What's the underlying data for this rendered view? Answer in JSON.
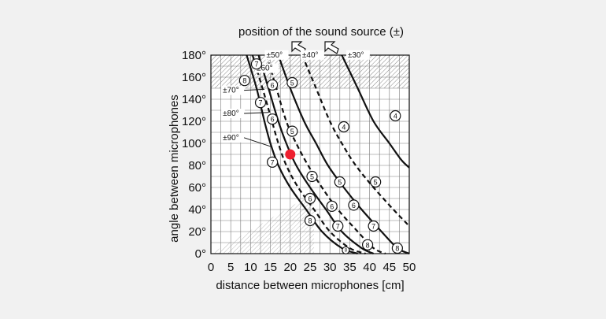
{
  "chart_data": {
    "type": "line",
    "title": "position of the sound source (±)",
    "xlabel": "distance between microphones [cm]",
    "ylabel": "angle between microphones",
    "xlim": [
      0,
      50
    ],
    "ylim": [
      0,
      180
    ],
    "x_ticks": [
      0,
      5,
      10,
      15,
      20,
      25,
      30,
      35,
      40,
      45,
      50
    ],
    "x_tick_labels": [
      "0",
      "5",
      "10",
      "15",
      "20",
      "25",
      "30",
      "35",
      "40",
      "45",
      "50"
    ],
    "y_ticks": [
      0,
      20,
      40,
      60,
      80,
      100,
      120,
      140,
      160,
      180
    ],
    "y_tick_labels": [
      "0°",
      "20°",
      "40°",
      "60°",
      "80°",
      "100°",
      "120°",
      "140°",
      "160°",
      "180°"
    ],
    "grid": true,
    "hatched_regions": [
      {
        "label": "",
        "x": [
          0,
          50
        ],
        "y": [
          150,
          180
        ]
      },
      {
        "label": "",
        "x": [
          0,
          26
        ],
        "y": [
          0,
          55
        ],
        "shape": "triangle"
      }
    ],
    "series": [
      {
        "name": "±90°",
        "style": "solid",
        "x": [
          9,
          11.5,
          13.5,
          15,
          17,
          20,
          24,
          28,
          33,
          37
        ],
        "y": [
          180,
          150,
          120,
          100,
          80,
          60,
          40,
          20,
          5,
          0
        ]
      },
      {
        "name": "±80°",
        "style": "dashed",
        "x": [
          10.5,
          13,
          15,
          17,
          19,
          22,
          26,
          30,
          35,
          39
        ],
        "y": [
          180,
          150,
          125,
          100,
          80,
          60,
          40,
          20,
          5,
          0
        ]
      },
      {
        "name": "±70°",
        "style": "solid",
        "x": [
          12,
          14.5,
          17,
          19,
          21.5,
          25,
          29,
          33,
          38,
          41
        ],
        "y": [
          180,
          150,
          120,
          100,
          80,
          60,
          40,
          20,
          5,
          0
        ]
      },
      {
        "name": "±60°",
        "style": "dashed",
        "x": [
          14,
          16.5,
          19,
          21.5,
          24.5,
          28,
          32,
          37,
          41,
          44
        ],
        "y": [
          180,
          150,
          120,
          100,
          80,
          60,
          40,
          20,
          5,
          0
        ]
      },
      {
        "name": "±50°",
        "style": "solid",
        "x": [
          17,
          20,
          23.5,
          26.5,
          29.5,
          33.5,
          38,
          43,
          47,
          50
        ],
        "y": [
          180,
          150,
          120,
          100,
          80,
          60,
          40,
          20,
          5,
          0
        ]
      },
      {
        "name": "±40°",
        "style": "dashed",
        "x": [
          23,
          26.5,
          30,
          33,
          36.5,
          41,
          46,
          50
        ],
        "y": [
          180,
          150,
          120,
          100,
          80,
          60,
          40,
          25
        ]
      },
      {
        "name": "±30°",
        "style": "solid",
        "x": [
          33,
          37,
          41,
          45,
          48,
          50
        ],
        "y": [
          180,
          150,
          120,
          100,
          85,
          78
        ]
      }
    ],
    "curve_labels": [
      {
        "text": "±90°",
        "x": 3,
        "y": 103
      },
      {
        "text": "±80°",
        "x": 3,
        "y": 125
      },
      {
        "text": "±70°",
        "x": 3,
        "y": 146
      },
      {
        "text": "±60°",
        "x": 11.5,
        "y": 166
      },
      {
        "text": "±50°",
        "x": 14,
        "y": 178
      },
      {
        "text": "±40°",
        "x": 23,
        "y": 178
      },
      {
        "text": "±30°",
        "x": 34.5,
        "y": 178
      }
    ],
    "markers": [
      {
        "text": "8",
        "x": 8.5,
        "y": 157
      },
      {
        "text": "7",
        "x": 11.5,
        "y": 172
      },
      {
        "text": "7",
        "x": 12.5,
        "y": 137
      },
      {
        "text": "6",
        "x": 15.5,
        "y": 153
      },
      {
        "text": "5",
        "x": 20.5,
        "y": 155
      },
      {
        "text": "6",
        "x": 15.5,
        "y": 122
      },
      {
        "text": "5",
        "x": 20.5,
        "y": 111
      },
      {
        "text": "4",
        "x": 33.5,
        "y": 115
      },
      {
        "text": "4",
        "x": 46.5,
        "y": 125
      },
      {
        "text": "7",
        "x": 15.5,
        "y": 83
      },
      {
        "text": "5",
        "x": 25.5,
        "y": 70
      },
      {
        "text": "5",
        "x": 32.5,
        "y": 65
      },
      {
        "text": "5",
        "x": 41.5,
        "y": 65
      },
      {
        "text": "6",
        "x": 25,
        "y": 50
      },
      {
        "text": "6",
        "x": 30.5,
        "y": 43
      },
      {
        "text": "6",
        "x": 36,
        "y": 44
      },
      {
        "text": "8",
        "x": 25,
        "y": 30
      },
      {
        "text": "7",
        "x": 32,
        "y": 25
      },
      {
        "text": "7",
        "x": 41,
        "y": 25
      },
      {
        "text": "8",
        "x": 39.5,
        "y": 8
      },
      {
        "text": "8",
        "x": 47,
        "y": 5
      },
      {
        "text": "8",
        "x": 34,
        "y": 3
      }
    ],
    "highlight_point": {
      "x": 20,
      "y": 90,
      "color": "#ee2030"
    }
  }
}
